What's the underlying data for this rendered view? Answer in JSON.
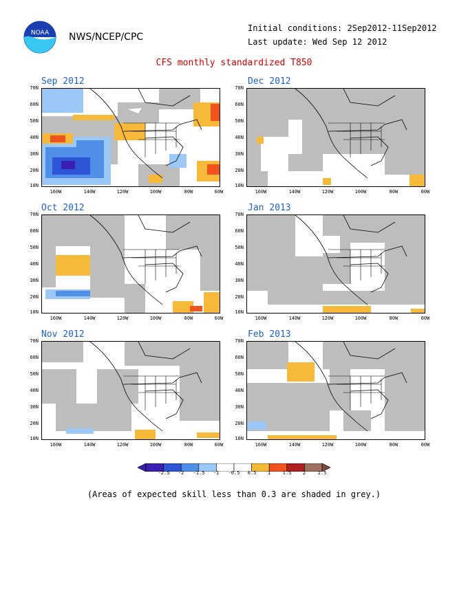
{
  "header": {
    "org": "NWS/NCEP/CPC",
    "init_label": "Initial conditions: 2Sep2012-11Sep2012",
    "update_label": "Last update: Wed Sep 12 2012",
    "title": "CFS monthly standardized T850",
    "logo_text": "NOAA"
  },
  "axes": {
    "lat_labels": [
      "70N",
      "60N",
      "50N",
      "40N",
      "30N",
      "20N",
      "10N"
    ],
    "lon_labels": [
      "160W",
      "140W",
      "120W",
      "100W",
      "80W",
      "60W"
    ]
  },
  "panels": [
    {
      "id": "sep",
      "title": "Sep 2012"
    },
    {
      "id": "dec",
      "title": "Dec 2012"
    },
    {
      "id": "oct",
      "title": "Oct 2012"
    },
    {
      "id": "jan",
      "title": "Jan 2013"
    },
    {
      "id": "nov",
      "title": "Nov 2012"
    },
    {
      "id": "feb",
      "title": "Feb 2013"
    }
  ],
  "colorbar": {
    "labels": [
      "-2.5",
      "-2",
      "-1.5",
      "-1",
      "-0.5",
      "0.5",
      "1",
      "1.5",
      "2",
      "2.5"
    ],
    "colors": [
      "#3a1fb0",
      "#2e55d6",
      "#4f8fe8",
      "#9cc8f7",
      "#ffffff",
      "#ffffff",
      "#f6b93a",
      "#f0531e",
      "#b01f1f",
      "#a07060",
      "#7a4a3a"
    ]
  },
  "footnote": "(Areas of expected skill less than 0.3 are shaded in grey.)",
  "colors": {
    "skill_grey": "#bdbdbd",
    "title_red": "#e00000",
    "panel_title_blue": "#1f5fd0"
  }
}
